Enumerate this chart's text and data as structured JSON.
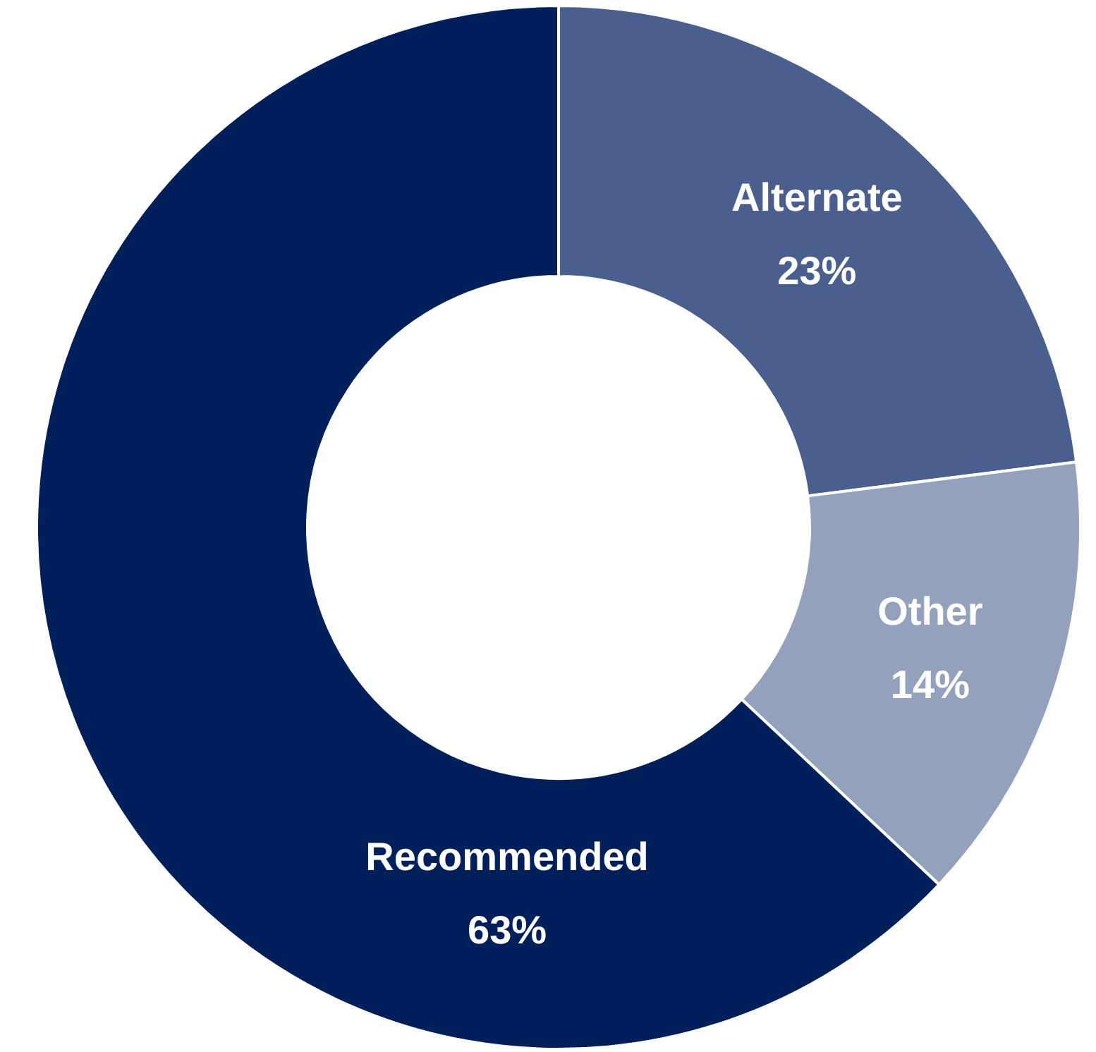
{
  "chart_data": {
    "type": "donut",
    "categories": [
      "Alternate",
      "Other",
      "Recommended"
    ],
    "values": [
      23,
      14,
      63
    ],
    "value_labels": [
      "23%",
      "14%",
      "63%"
    ],
    "colors": [
      "#4a5f8d",
      "#93a1bc",
      "#001f5b"
    ],
    "legend": false
  }
}
